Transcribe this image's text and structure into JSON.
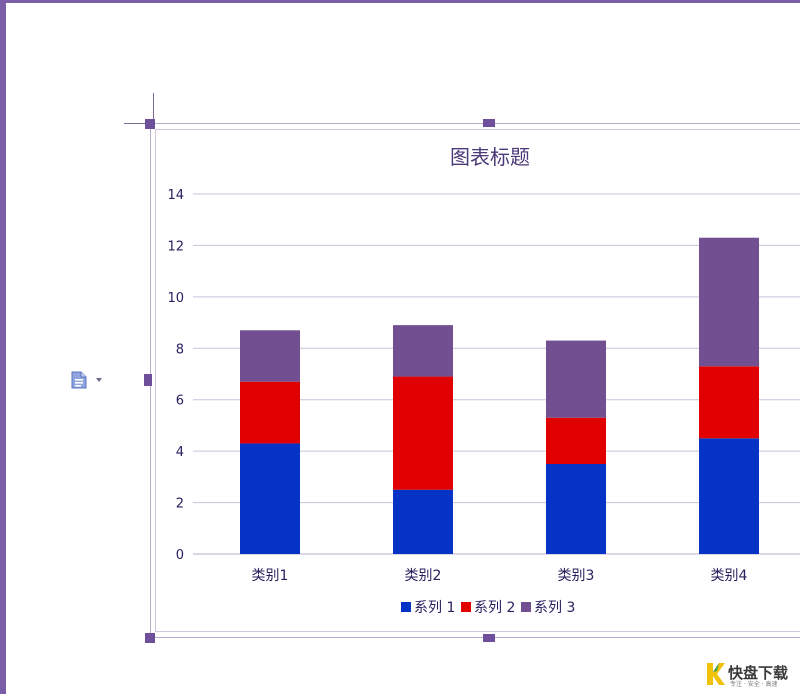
{
  "chart_data": {
    "type": "bar",
    "stacked": true,
    "title": "图表标题",
    "categories": [
      "类别1",
      "类别2",
      "类别3",
      "类别4"
    ],
    "series": [
      {
        "name": "系列 1",
        "color": "#0433c5",
        "values": [
          4.3,
          2.5,
          3.5,
          4.5
        ]
      },
      {
        "name": "系列 2",
        "color": "#e00000",
        "values": [
          2.4,
          4.4,
          1.8,
          2.8
        ]
      },
      {
        "name": "系列 3",
        "color": "#714f91",
        "values": [
          2.0,
          2.0,
          3.0,
          5.0
        ]
      }
    ],
    "ylim": [
      0,
      14
    ],
    "yticks": [
      "0",
      "2",
      "4",
      "6",
      "8",
      "10",
      "12",
      "14"
    ],
    "grid": true,
    "legend_position": "bottom"
  },
  "watermark": {
    "logo_text": "快盘下载",
    "tagline": "专注 · 安全 · 高速",
    "icon": "lightning-k-icon"
  },
  "toolbar": {
    "layout_icon": "layout-options-icon",
    "dropdown_icon": "caret-down-icon"
  },
  "colors": {
    "frame": "#7a5ea8",
    "handle": "#6e4f9c",
    "grid": "#c9c4dc"
  }
}
